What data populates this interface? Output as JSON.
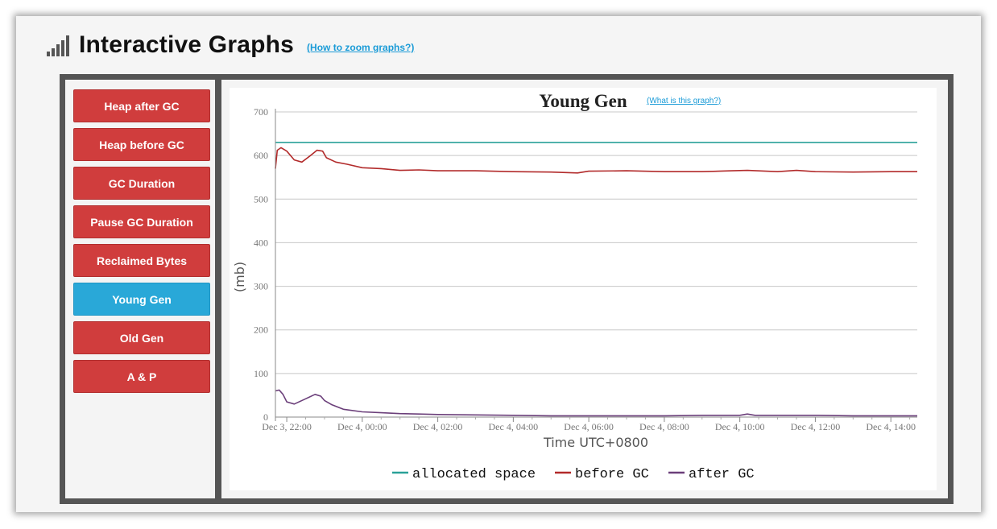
{
  "header": {
    "title": "Interactive Graphs",
    "zoom_link": "(How to zoom graphs?)"
  },
  "sidebar": {
    "items": [
      {
        "label": "Heap after GC",
        "active": false
      },
      {
        "label": "Heap before GC",
        "active": false
      },
      {
        "label": "GC Duration",
        "active": false
      },
      {
        "label": "Pause GC Duration",
        "active": false
      },
      {
        "label": "Reclaimed Bytes",
        "active": false
      },
      {
        "label": "Young Gen",
        "active": true
      },
      {
        "label": "Old Gen",
        "active": false
      },
      {
        "label": "A & P",
        "active": false
      }
    ]
  },
  "colors": {
    "button": "#d03d3d",
    "button_active": "#29a8d8",
    "allocated": "#2aa198",
    "before": "#b22b2b",
    "after": "#6b3f7a"
  },
  "chart_data": {
    "type": "line",
    "title": "Young Gen",
    "help_link": "(What is this graph?)",
    "xlabel": "Time UTC+0800",
    "ylabel": "(mb)",
    "ylim": [
      0,
      700
    ],
    "yticks": [
      0,
      100,
      200,
      300,
      400,
      500,
      600,
      700
    ],
    "xlim": [
      0,
      16.7
    ],
    "x_unit": "hours since Dec 3, 22:00",
    "xticks": [
      {
        "x": 0,
        "label": "Dec 3, 22:00"
      },
      {
        "x": 2,
        "label": "Dec 4, 00:00"
      },
      {
        "x": 4,
        "label": "Dec 4, 02:00"
      },
      {
        "x": 6,
        "label": "Dec 4, 04:00"
      },
      {
        "x": 8,
        "label": "Dec 4, 06:00"
      },
      {
        "x": 10,
        "label": "Dec 4, 08:00"
      },
      {
        "x": 12,
        "label": "Dec 4, 10:00"
      },
      {
        "x": 14,
        "label": "Dec 4, 12:00"
      },
      {
        "x": 16,
        "label": "Dec 4, 14:00"
      }
    ],
    "grid": true,
    "legend": "bottom",
    "series": [
      {
        "name": "allocated space",
        "color": "#2aa198",
        "x": [
          -0.3,
          16.7
        ],
        "y": [
          630,
          630
        ]
      },
      {
        "name": "before GC",
        "color": "#b22b2b",
        "x": [
          -0.3,
          -0.25,
          -0.15,
          0.0,
          0.2,
          0.4,
          0.6,
          0.8,
          0.95,
          1.05,
          1.3,
          1.6,
          2.0,
          2.5,
          3.0,
          3.5,
          4.0,
          5.0,
          6.0,
          7.0,
          7.7,
          8.0,
          9.0,
          10.0,
          11.0,
          11.8,
          12.2,
          13.0,
          13.5,
          14.0,
          15.0,
          16.0,
          16.7
        ],
        "y": [
          570,
          612,
          618,
          610,
          590,
          585,
          598,
          612,
          610,
          595,
          585,
          580,
          572,
          570,
          566,
          567,
          565,
          565,
          563,
          562,
          560,
          564,
          565,
          563,
          563,
          565,
          566,
          563,
          566,
          563,
          562,
          563,
          563
        ]
      },
      {
        "name": "after GC",
        "color": "#6b3f7a",
        "x": [
          -0.3,
          -0.2,
          -0.1,
          0.0,
          0.2,
          0.5,
          0.75,
          0.9,
          1.0,
          1.2,
          1.5,
          2.0,
          2.5,
          3.0,
          3.5,
          4.0,
          5.0,
          6.0,
          7.0,
          8.0,
          9.0,
          10.0,
          11.0,
          12.0,
          12.2,
          12.4,
          13.0,
          14.0,
          15.0,
          16.0,
          16.7
        ],
        "y": [
          60,
          62,
          52,
          35,
          30,
          42,
          52,
          48,
          38,
          28,
          18,
          12,
          10,
          8,
          7,
          6,
          5,
          4,
          3,
          3,
          3,
          3,
          4,
          4,
          7,
          4,
          4,
          4,
          3,
          3,
          3
        ]
      }
    ]
  }
}
